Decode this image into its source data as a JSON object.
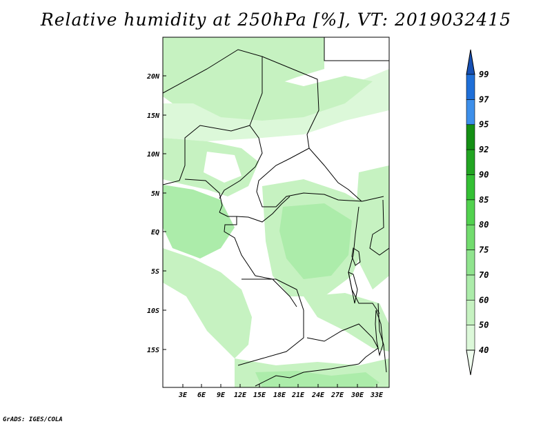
{
  "title": "Relative humidity at 250hPa [%], VT: 2019032415",
  "credit": "GrADS: IGES/COLA",
  "map": {
    "variable": "Relative humidity",
    "level": "250hPa",
    "units": "%",
    "valid_time": "2019032415",
    "lat_labels": [
      "20N",
      "15N",
      "10N",
      "5N",
      "EQ",
      "5S",
      "10S",
      "15S"
    ],
    "lon_labels": [
      "3E",
      "6E",
      "9E",
      "12E",
      "15E",
      "18E",
      "21E",
      "24E",
      "27E",
      "30E",
      "33E"
    ]
  },
  "colorbar": {
    "levels": [
      "40",
      "50",
      "60",
      "70",
      "75",
      "80",
      "85",
      "90",
      "92",
      "95",
      "97",
      "99"
    ],
    "colors": [
      "#effdee",
      "#dcf8d9",
      "#c6f2c1",
      "#acecaa",
      "#90e48e",
      "#72dc6e",
      "#52d24f",
      "#34c034",
      "#22a522",
      "#148f14",
      "#3d8fea",
      "#1f6fd8",
      "#1650b4"
    ]
  }
}
